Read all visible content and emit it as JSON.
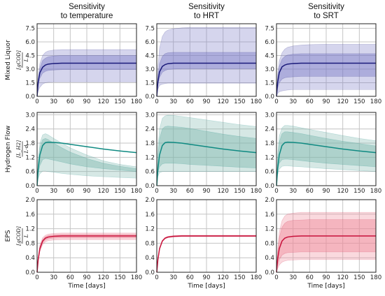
{
  "chart_data": {
    "type": "line",
    "x_unit_label": "Time [days]",
    "x_ticks": [
      0,
      30,
      60,
      90,
      120,
      150,
      180
    ],
    "xlim": [
      0,
      180
    ],
    "grid": true,
    "column_titles": [
      [
        "Sensitivity",
        "to temperature"
      ],
      [
        "Sensitivity",
        "to HRT"
      ],
      [
        "Sensitivity",
        "to SRT"
      ]
    ],
    "rows": [
      {
        "name": "Mixed Liquor",
        "unit_top": "gCOD",
        "unit_bottom": "L",
        "color": "#1a1a7a",
        "fill": "#7d7dc8",
        "ylim": [
          0,
          8
        ],
        "y_ticks": [
          "0.0",
          "1.5",
          "3.0",
          "4.5",
          "6.0",
          "7.5"
        ],
        "y_tick_values": [
          0,
          1.5,
          3.0,
          4.5,
          6.0,
          7.5
        ],
        "panels": [
          {
            "time": [
              0,
              2,
              5,
              10,
              15,
              20,
              30,
              45,
              60,
              90,
              120,
              150,
              180
            ],
            "mean": [
              0.0,
              1.6,
              2.6,
              3.2,
              3.45,
              3.55,
              3.62,
              3.65,
              3.65,
              3.65,
              3.65,
              3.65,
              3.65
            ],
            "outer": [
              [
                0.0,
                2.2,
                3.6,
                4.5,
                4.85,
                5.0,
                5.1,
                5.15,
                5.15,
                5.15,
                5.15,
                5.15,
                5.15
              ],
              [
                0.0,
                0.6,
                1.0,
                1.35,
                1.5,
                1.55,
                1.6,
                1.6,
                1.6,
                1.6,
                1.6,
                1.6,
                1.6
              ]
            ],
            "inner": [
              [
                0.0,
                1.9,
                3.1,
                3.95,
                4.2,
                4.35,
                4.45,
                4.5,
                4.5,
                4.5,
                4.5,
                4.5,
                4.5
              ],
              [
                0.0,
                1.2,
                2.0,
                2.55,
                2.75,
                2.85,
                2.9,
                2.95,
                2.95,
                2.95,
                2.95,
                2.95,
                2.95
              ]
            ]
          },
          {
            "time": [
              0,
              2,
              5,
              10,
              15,
              20,
              30,
              45,
              60,
              90,
              120,
              150,
              180
            ],
            "mean": [
              0.0,
              1.6,
              2.7,
              3.3,
              3.5,
              3.6,
              3.65,
              3.65,
              3.65,
              3.65,
              3.65,
              3.65,
              3.65
            ],
            "outer": [
              [
                0.0,
                3.2,
                5.3,
                6.6,
                7.1,
                7.3,
                7.45,
                7.55,
                7.6,
                7.6,
                7.6,
                7.6,
                7.6
              ],
              [
                0.0,
                0.8,
                1.2,
                1.35,
                1.4,
                1.45,
                1.45,
                1.45,
                1.45,
                1.45,
                1.45,
                1.45,
                1.45
              ]
            ],
            "inner": [
              [
                0.0,
                2.2,
                3.6,
                4.4,
                4.7,
                4.8,
                4.85,
                4.85,
                4.85,
                4.85,
                4.85,
                4.85,
                4.85
              ],
              [
                0.0,
                1.3,
                2.1,
                2.65,
                2.85,
                2.95,
                3.0,
                3.05,
                3.05,
                3.05,
                3.05,
                3.05,
                3.05
              ]
            ]
          },
          {
            "time": [
              0,
              2,
              5,
              10,
              15,
              20,
              30,
              45,
              60,
              90,
              120,
              150,
              180
            ],
            "mean": [
              0.0,
              1.5,
              2.6,
              3.25,
              3.45,
              3.55,
              3.62,
              3.65,
              3.65,
              3.65,
              3.65,
              3.65,
              3.65
            ],
            "outer": [
              [
                0.0,
                2.4,
                3.9,
                4.8,
                5.2,
                5.4,
                5.55,
                5.65,
                5.7,
                5.75,
                5.75,
                5.75,
                5.75
              ],
              [
                0.0,
                0.3,
                0.5,
                0.6,
                0.65,
                0.7,
                0.75,
                0.75,
                0.75,
                0.75,
                0.75,
                0.75,
                0.75
              ]
            ],
            "inner": [
              [
                0.0,
                2.0,
                3.3,
                4.1,
                4.4,
                4.55,
                4.65,
                4.7,
                4.7,
                4.7,
                4.7,
                4.7,
                4.7
              ],
              [
                0.0,
                0.9,
                1.5,
                1.9,
                2.05,
                2.1,
                2.15,
                2.2,
                2.2,
                2.2,
                2.2,
                2.2,
                2.2
              ]
            ]
          }
        ]
      },
      {
        "name": "Hydrogen Flow",
        "unit_top": "L_H2",
        "unit_bottom": "L·d",
        "color": "#0f8a82",
        "fill": "#7fb8ad",
        "ylim": [
          0,
          3.1
        ],
        "y_ticks": [
          "0.0",
          "0.6",
          "1.2",
          "1.8",
          "2.4",
          "3.0"
        ],
        "y_tick_values": [
          0,
          0.6,
          1.2,
          1.8,
          2.4,
          3.0
        ],
        "panels": [
          {
            "time": [
              0,
              2,
              5,
              10,
              15,
              20,
              30,
              45,
              60,
              90,
              120,
              150,
              180
            ],
            "mean": [
              0.0,
              0.7,
              1.3,
              1.7,
              1.82,
              1.84,
              1.83,
              1.8,
              1.75,
              1.65,
              1.55,
              1.47,
              1.4
            ],
            "outer": [
              [
                0.0,
                1.1,
                1.8,
                2.15,
                2.2,
                2.15,
                2.0,
                1.8,
                1.6,
                1.3,
                1.05,
                0.9,
                0.8
              ],
              [
                0.0,
                0.3,
                0.5,
                0.62,
                0.62,
                0.6,
                0.57,
                0.52,
                0.48,
                0.42,
                0.38,
                0.35,
                0.32
              ]
            ],
            "inner": [
              [
                0.0,
                1.0,
                1.6,
                1.95,
                2.0,
                1.95,
                1.8,
                1.6,
                1.42,
                1.15,
                0.95,
                0.82,
                0.72
              ],
              [
                0.0,
                0.5,
                0.85,
                1.1,
                1.15,
                1.13,
                1.08,
                1.0,
                0.92,
                0.8,
                0.72,
                0.66,
                0.6
              ]
            ]
          },
          {
            "time": [
              0,
              2,
              5,
              10,
              15,
              20,
              30,
              45,
              60,
              90,
              120,
              150,
              180
            ],
            "mean": [
              0.0,
              0.7,
              1.3,
              1.7,
              1.82,
              1.84,
              1.83,
              1.8,
              1.75,
              1.65,
              1.55,
              1.47,
              1.4
            ],
            "outer": [
              [
                0.0,
                1.6,
                2.4,
                2.85,
                2.95,
                2.98,
                2.97,
                2.93,
                2.88,
                2.78,
                2.68,
                2.58,
                2.5
              ],
              [
                0.0,
                0.4,
                0.55,
                0.6,
                0.6,
                0.6,
                0.6,
                0.6,
                0.6,
                0.6,
                0.6,
                0.6,
                0.6
              ]
            ],
            "inner": [
              [
                0.0,
                1.3,
                2.0,
                2.4,
                2.5,
                2.52,
                2.5,
                2.47,
                2.42,
                2.3,
                2.18,
                2.08,
                2.0
              ],
              [
                0.0,
                0.55,
                0.8,
                0.92,
                0.95,
                0.95,
                0.95,
                0.93,
                0.9,
                0.86,
                0.82,
                0.78,
                0.75
              ]
            ]
          },
          {
            "time": [
              0,
              2,
              5,
              10,
              15,
              20,
              30,
              45,
              60,
              90,
              120,
              150,
              180
            ],
            "mean": [
              0.0,
              0.7,
              1.3,
              1.7,
              1.82,
              1.84,
              1.83,
              1.8,
              1.75,
              1.65,
              1.55,
              1.47,
              1.4
            ],
            "outer": [
              [
                0.0,
                1.3,
                2.1,
                2.45,
                2.55,
                2.55,
                2.52,
                2.45,
                2.38,
                2.25,
                2.12,
                2.0,
                1.9
              ],
              [
                0.0,
                0.45,
                0.7,
                0.82,
                0.84,
                0.84,
                0.82,
                0.8,
                0.77,
                0.72,
                0.68,
                0.64,
                0.6
              ]
            ],
            "inner": [
              [
                0.0,
                1.15,
                1.85,
                2.2,
                2.28,
                2.28,
                2.25,
                2.2,
                2.13,
                2.0,
                1.88,
                1.78,
                1.68
              ],
              [
                0.0,
                0.6,
                0.95,
                1.1,
                1.12,
                1.12,
                1.1,
                1.06,
                1.02,
                0.95,
                0.9,
                0.85,
                0.8
              ]
            ]
          }
        ]
      },
      {
        "name": "EPS",
        "unit_top": "gCOD",
        "unit_bottom": "L",
        "color": "#c8103a",
        "fill": "#f08a98",
        "ylim": [
          0,
          2.0
        ],
        "y_ticks": [
          "0.0",
          "0.4",
          "0.8",
          "1.2",
          "1.6",
          "2.0"
        ],
        "y_tick_values": [
          0,
          0.4,
          0.8,
          1.2,
          1.6,
          2.0
        ],
        "panels": [
          {
            "time": [
              0,
              2,
              5,
              10,
              15,
              20,
              30,
              45,
              60,
              90,
              120,
              150,
              180
            ],
            "mean": [
              0.0,
              0.35,
              0.65,
              0.86,
              0.94,
              0.97,
              0.99,
              1.0,
              1.0,
              1.0,
              1.0,
              1.0,
              1.0
            ],
            "outer": [
              [
                0.0,
                0.42,
                0.75,
                0.95,
                1.02,
                1.05,
                1.07,
                1.08,
                1.08,
                1.08,
                1.08,
                1.08,
                1.08
              ],
              [
                0.0,
                0.3,
                0.57,
                0.76,
                0.84,
                0.87,
                0.89,
                0.9,
                0.9,
                0.9,
                0.9,
                0.9,
                0.9
              ]
            ],
            "inner": [
              [
                0.0,
                0.38,
                0.7,
                0.9,
                0.98,
                1.01,
                1.03,
                1.04,
                1.04,
                1.04,
                1.04,
                1.04,
                1.04
              ],
              [
                0.0,
                0.32,
                0.61,
                0.81,
                0.89,
                0.92,
                0.94,
                0.95,
                0.95,
                0.95,
                0.95,
                0.95,
                0.95
              ]
            ]
          },
          {
            "time": [
              0,
              2,
              5,
              10,
              15,
              20,
              30,
              45,
              60,
              90,
              120,
              150,
              180
            ],
            "mean": [
              0.0,
              0.35,
              0.65,
              0.86,
              0.94,
              0.97,
              0.99,
              1.0,
              1.0,
              1.0,
              1.0,
              1.0,
              1.0
            ],
            "outer": [
              [
                0.0,
                0.37,
                0.67,
                0.88,
                0.96,
                0.99,
                1.01,
                1.02,
                1.02,
                1.02,
                1.02,
                1.02,
                1.02
              ],
              [
                0.0,
                0.33,
                0.63,
                0.84,
                0.92,
                0.95,
                0.97,
                0.98,
                0.98,
                0.98,
                0.98,
                0.98,
                0.98
              ]
            ],
            "inner": [
              [
                0.0,
                0.36,
                0.66,
                0.87,
                0.95,
                0.98,
                1.0,
                1.01,
                1.01,
                1.01,
                1.01,
                1.01,
                1.01
              ],
              [
                0.0,
                0.34,
                0.64,
                0.85,
                0.93,
                0.96,
                0.98,
                0.99,
                0.99,
                0.99,
                0.99,
                0.99,
                0.99
              ]
            ]
          },
          {
            "time": [
              0,
              2,
              5,
              10,
              15,
              20,
              30,
              45,
              60,
              90,
              120,
              150,
              180
            ],
            "mean": [
              0.0,
              0.35,
              0.65,
              0.86,
              0.94,
              0.97,
              0.99,
              1.0,
              1.0,
              1.0,
              1.0,
              1.0,
              1.0
            ],
            "outer": [
              [
                0.0,
                0.6,
                1.1,
                1.42,
                1.55,
                1.6,
                1.63,
                1.65,
                1.65,
                1.65,
                1.65,
                1.65,
                1.65
              ],
              [
                0.0,
                0.1,
                0.2,
                0.28,
                0.31,
                0.33,
                0.34,
                0.35,
                0.35,
                0.35,
                0.35,
                0.35,
                0.35
              ]
            ],
            "inner": [
              [
                0.0,
                0.52,
                0.95,
                1.24,
                1.35,
                1.4,
                1.43,
                1.44,
                1.45,
                1.45,
                1.45,
                1.45,
                1.45
              ],
              [
                0.0,
                0.18,
                0.35,
                0.47,
                0.52,
                0.54,
                0.55,
                0.56,
                0.56,
                0.56,
                0.56,
                0.56,
                0.56
              ]
            ]
          }
        ]
      }
    ]
  }
}
